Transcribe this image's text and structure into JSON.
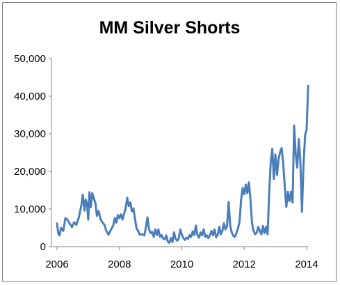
{
  "chart_data": {
    "type": "line",
    "title": "MM Silver Shorts",
    "xlabel": "",
    "ylabel": "",
    "xlim": [
      2006,
      2014
    ],
    "ylim": [
      0,
      50000
    ],
    "x_ticks": [
      "2006",
      "2008",
      "2010",
      "2012",
      "2014"
    ],
    "x_tick_values": [
      2006,
      2008,
      2010,
      2012,
      2014
    ],
    "y_ticks": [
      "0",
      "10,000",
      "20,000",
      "30,000",
      "40,000",
      "50,000"
    ],
    "y_tick_values": [
      0,
      10000,
      20000,
      30000,
      40000,
      50000
    ],
    "grid": false,
    "legend": "none",
    "series": [
      {
        "color": "#4a7ebb",
        "points": [
          [
            2006.0,
            6200
          ],
          [
            2006.04,
            3500
          ],
          [
            2006.08,
            3000
          ],
          [
            2006.13,
            5000
          ],
          [
            2006.2,
            4200
          ],
          [
            2006.27,
            7600
          ],
          [
            2006.33,
            7200
          ],
          [
            2006.4,
            6200
          ],
          [
            2006.48,
            5200
          ],
          [
            2006.55,
            6500
          ],
          [
            2006.62,
            5800
          ],
          [
            2006.7,
            7800
          ],
          [
            2006.78,
            11000
          ],
          [
            2006.83,
            13800
          ],
          [
            2006.88,
            9600
          ],
          [
            2006.92,
            12500
          ],
          [
            2006.96,
            11500
          ],
          [
            2007.0,
            7200
          ],
          [
            2007.04,
            14500
          ],
          [
            2007.08,
            10500
          ],
          [
            2007.13,
            14200
          ],
          [
            2007.18,
            12800
          ],
          [
            2007.23,
            11600
          ],
          [
            2007.28,
            8200
          ],
          [
            2007.33,
            9500
          ],
          [
            2007.4,
            7200
          ],
          [
            2007.45,
            6500
          ],
          [
            2007.52,
            5800
          ],
          [
            2007.58,
            4200
          ],
          [
            2007.65,
            3200
          ],
          [
            2007.72,
            4400
          ],
          [
            2007.8,
            5600
          ],
          [
            2007.85,
            7600
          ],
          [
            2007.9,
            6400
          ],
          [
            2007.95,
            8400
          ],
          [
            2008.0,
            7600
          ],
          [
            2008.05,
            8600
          ],
          [
            2008.1,
            7200
          ],
          [
            2008.15,
            8800
          ],
          [
            2008.2,
            10200
          ],
          [
            2008.25,
            13000
          ],
          [
            2008.3,
            10800
          ],
          [
            2008.35,
            11800
          ],
          [
            2008.4,
            9400
          ],
          [
            2008.45,
            10200
          ],
          [
            2008.5,
            7300
          ],
          [
            2008.55,
            4800
          ],
          [
            2008.6,
            4200
          ],
          [
            2008.65,
            3200
          ],
          [
            2008.72,
            3300
          ],
          [
            2008.8,
            3000
          ],
          [
            2008.85,
            5200
          ],
          [
            2008.9,
            7800
          ],
          [
            2008.95,
            4600
          ],
          [
            2009.0,
            3600
          ],
          [
            2009.05,
            3900
          ],
          [
            2009.1,
            2600
          ],
          [
            2009.15,
            4600
          ],
          [
            2009.2,
            3100
          ],
          [
            2009.25,
            4600
          ],
          [
            2009.3,
            2600
          ],
          [
            2009.35,
            3100
          ],
          [
            2009.4,
            2200
          ],
          [
            2009.45,
            1900
          ],
          [
            2009.5,
            3000
          ],
          [
            2009.55,
            1400
          ],
          [
            2009.6,
            1000
          ],
          [
            2009.65,
            2300
          ],
          [
            2009.7,
            1200
          ],
          [
            2009.75,
            3800
          ],
          [
            2009.8,
            2100
          ],
          [
            2009.85,
            1600
          ],
          [
            2009.9,
            2100
          ],
          [
            2009.95,
            4600
          ],
          [
            2010.0,
            3200
          ],
          [
            2010.05,
            2300
          ],
          [
            2010.1,
            1800
          ],
          [
            2010.15,
            2400
          ],
          [
            2010.2,
            2100
          ],
          [
            2010.25,
            3100
          ],
          [
            2010.3,
            2600
          ],
          [
            2010.35,
            4100
          ],
          [
            2010.4,
            3100
          ],
          [
            2010.45,
            5600
          ],
          [
            2010.5,
            3100
          ],
          [
            2010.55,
            2400
          ],
          [
            2010.6,
            3800
          ],
          [
            2010.65,
            3000
          ],
          [
            2010.7,
            4600
          ],
          [
            2010.75,
            2600
          ],
          [
            2010.8,
            3000
          ],
          [
            2010.85,
            2300
          ],
          [
            2010.9,
            3000
          ],
          [
            2010.95,
            4200
          ],
          [
            2011.0,
            3000
          ],
          [
            2011.05,
            4600
          ],
          [
            2011.1,
            2500
          ],
          [
            2011.15,
            3100
          ],
          [
            2011.2,
            5300
          ],
          [
            2011.25,
            3300
          ],
          [
            2011.3,
            4200
          ],
          [
            2011.35,
            6200
          ],
          [
            2011.4,
            4600
          ],
          [
            2011.45,
            5500
          ],
          [
            2011.5,
            11900
          ],
          [
            2011.55,
            5600
          ],
          [
            2011.6,
            3800
          ],
          [
            2011.65,
            2900
          ],
          [
            2011.7,
            2600
          ],
          [
            2011.75,
            3600
          ],
          [
            2011.8,
            4900
          ],
          [
            2011.85,
            6600
          ],
          [
            2011.9,
            12600
          ],
          [
            2011.95,
            15600
          ],
          [
            2012.0,
            13900
          ],
          [
            2012.05,
            16500
          ],
          [
            2012.1,
            14200
          ],
          [
            2012.15,
            17100
          ],
          [
            2012.2,
            12600
          ],
          [
            2012.25,
            6200
          ],
          [
            2012.3,
            4200
          ],
          [
            2012.35,
            3300
          ],
          [
            2012.4,
            3700
          ],
          [
            2012.45,
            5300
          ],
          [
            2012.5,
            4200
          ],
          [
            2012.55,
            3300
          ],
          [
            2012.6,
            5500
          ],
          [
            2012.65,
            3600
          ],
          [
            2012.7,
            5300
          ],
          [
            2012.75,
            3300
          ],
          [
            2012.8,
            14100
          ],
          [
            2012.85,
            22400
          ],
          [
            2012.9,
            26000
          ],
          [
            2012.95,
            18000
          ],
          [
            2013.0,
            24500
          ],
          [
            2013.05,
            19100
          ],
          [
            2013.1,
            23200
          ],
          [
            2013.15,
            25200
          ],
          [
            2013.2,
            26200
          ],
          [
            2013.25,
            22300
          ],
          [
            2013.3,
            15800
          ],
          [
            2013.35,
            10600
          ],
          [
            2013.4,
            14600
          ],
          [
            2013.45,
            12100
          ],
          [
            2013.5,
            14600
          ],
          [
            2013.55,
            11700
          ],
          [
            2013.6,
            32200
          ],
          [
            2013.65,
            24600
          ],
          [
            2013.7,
            21000
          ],
          [
            2013.75,
            28600
          ],
          [
            2013.8,
            22600
          ],
          [
            2013.85,
            9300
          ],
          [
            2013.9,
            21600
          ],
          [
            2013.95,
            29600
          ],
          [
            2014.0,
            31200
          ],
          [
            2014.05,
            42700
          ]
        ]
      }
    ]
  }
}
